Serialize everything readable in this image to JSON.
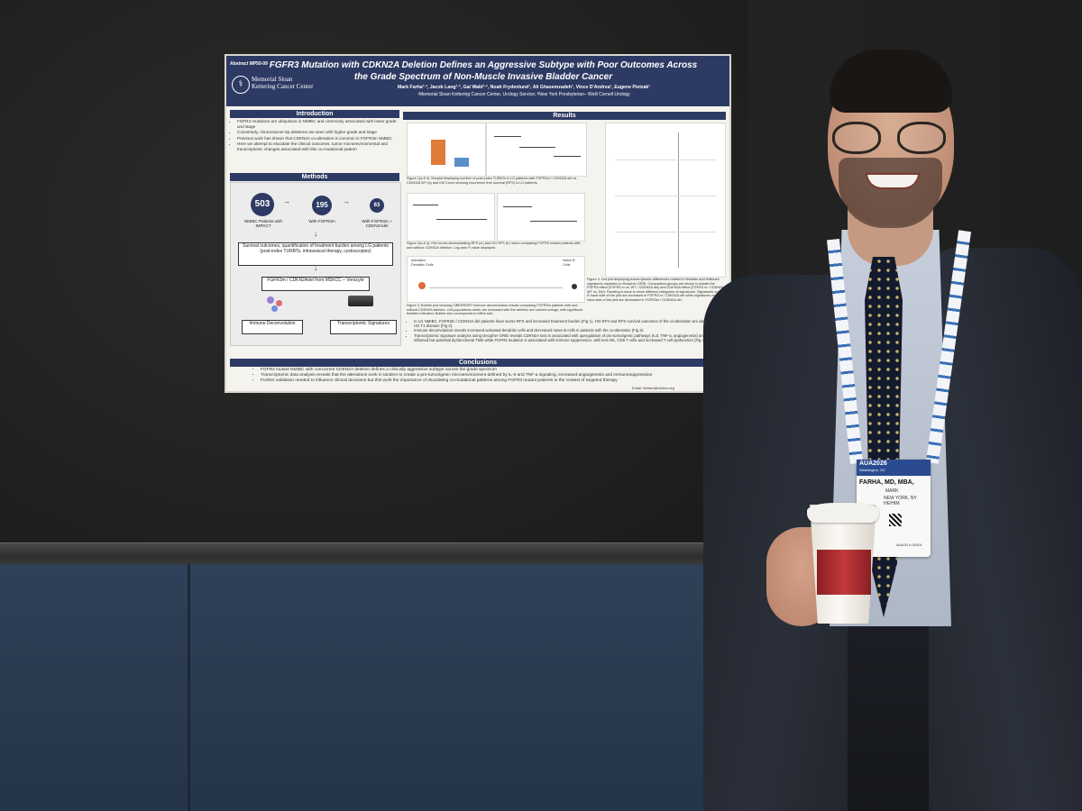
{
  "poster": {
    "abstract_no": "Abstract MP50-09",
    "logo_name": "Memorial Sloan Kettering Cancer Center",
    "title": "FGFR3 Mutation with CDKN2A Deletion Defines an Aggressive Subtype with Poor Outcomes Across the Grade Spectrum of Non-Muscle Invasive Bladder Cancer",
    "authors": "Mark Farha¹·², Jacob Lang¹·², Gal Wald¹·², Noah Frydenlund¹, Ali Ghasemzadeh¹, Vince D'Andrea¹, Eugene Pietzak¹",
    "affiliations": "¹Memorial Sloan Kettering Cancer Center, Urology Service; ²New York Presbyterian– Weill Cornell Urology",
    "sections": {
      "introduction": "Introduction",
      "methods": "Methods",
      "results": "Results",
      "conclusions": "Conclusions"
    },
    "intro_items": [
      "FGFR3 mutations are ubiquitous in NMIBC and commonly associated with lower grade and stage",
      "Conversely, chromosome 9p deletions are seen with higher grade and stage",
      "Previous work has shown that CDKN2A co-alteration is common in FGFR3m NMIBC",
      "Here we attempt to elucidate the clinical outcomes, tumor microenvironmental and transcriptomic changes associated with this co-mutational pattern"
    ],
    "methods": {
      "n1": "503",
      "n1_label": "NMIBC Patients with IMPACT",
      "n2": "195",
      "n2_label": "With FGFR3m",
      "n3": "63",
      "n3_label": "With FGFR3m + CDKN2Adel",
      "survival_box": "Survival outcomes, quantification of treatment burden among LG patients (post-index TURBTs, intravesical therapy, cystoscopies)",
      "veracyte_box": "FGFR3m / CDKN2Adel from MSKCC – Veracyte",
      "immune_box": "Immune Deconvolution",
      "transcript_box": "Transcriptomic Signatures"
    },
    "figure_captions": {
      "fig1": "Figure 1(a & b). Boxplot displaying number of post-index TURBTs in LG patients with FGFR3m / CDKN2A del vs. CDKN2A WT (a) and KM Curve showing recurrence free survival (RFS) in LG patients.",
      "fig2": "Figure 2(a & b). KM curves demonstrating RFS (a.) and HG RFS (b.) when comparing FGFR3 mutant patients with and without CDKN2A deletion. Log-rank P-value displayed.",
      "fig3": "Figure 3. Bubble plot showing CIBERSORT immune deconvolution results comparing FGFR3m patients with and without CDKN2A deletion. Cell populations which are increased with the deletion are colored orange, with significant bubbles indicated. Bubble size corresponds to effect size.",
      "fig4": "Figure 4. Dot plot displaying transcriptomic differences related to Molsaks and Hallmark signatures captured on Decipher GRID. Comparison groups are shown to isolate the FGFR3 effect (FGFR3 m vs. WT / CDKN2A del) and CDKN2A effect (FGFR3 m / CDKN2A WT vs. Del). Faceting is done to show different categories of signatures. Signatures on the R hand side of the plot are increased in FGFR3 m / CDKN2A del while signatures on the L hand side of the plot are decreased in FGFR3m / CDKN2A del.",
      "activated_dc": "Activated Dendritic Cells",
      "naive_b": "Naïve B Cells"
    },
    "results_items": [
      "In LG NMIBC, FGFR3m / CDKN2A del patients have worse RFS and increased treatment burden (Fig 1). HG-RFS and RFS survival outcomes of the co-alteration are also worse in HG T1 disease (Fig 2).",
      "Immune deconvolution reveals increased activated dendritic cells and decreased naïve B cells in patients with the co-alteration (Fig 3).",
      "Transcriptomic signature analysis using Decipher GRID reveals CDKN2A loss is associated with upregulation of pro-tumorigenic pathways (IL6, TNF-a, angiogenesis) and an inflamed but potential dysfunctional TME while FGFR3 mutation is associated with immune suppression, with less NK, CD8 T cells and increased T cell dysfunction (Fig 4)."
    ],
    "conclusion_items": [
      "FGFR3 mutant NMIBC with concurrent CDKN2A deletion defines a clinically aggressive subtype across the grade spectrum",
      "Transcriptomic data analysis reveals that the alterations work in tandem to create a pro-tumorigenic microenvironment defined by IL-6 and TNF-a signaling, increased angiogenesis and immunosuppression",
      "Further validation needed to influence clinical decisions but this work the importance of elucidating co-mutational patterns among FGFR3 mutant patients in the context of targeted therapy"
    ],
    "footer": "Email: farham@mskcc.org"
  },
  "badge": {
    "event": "AUA2026",
    "location": "Washington, DC",
    "last_name": "FARHA, MD, MBA,",
    "first_name": "MARK",
    "city": "NEW YORK, NY",
    "suffix": "HE/HIM",
    "id_text": "AUA ID # 01001"
  },
  "colors": {
    "poster_navy": "#2d3a63",
    "orange_box": "#e07b39",
    "blue_box": "#5b8fc9",
    "cup_sleeve": "#c23a3a"
  }
}
